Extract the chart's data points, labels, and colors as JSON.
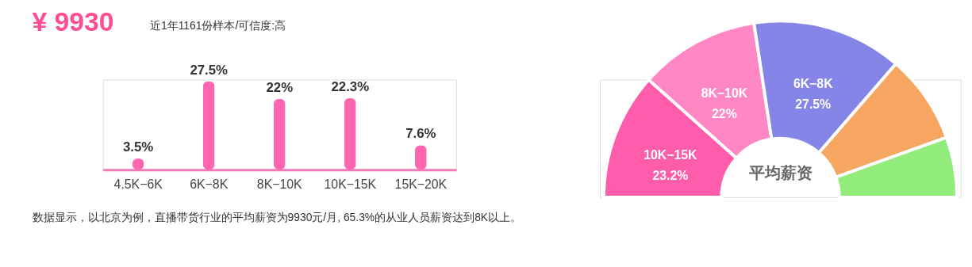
{
  "chart_data": [
    {
      "type": "bar",
      "title": "¥ 9930",
      "subtitle": "近1年1161份样本/可信度:高",
      "categories": [
        "4.5K−6K",
        "6K−8K",
        "8K−10K",
        "10K−15K",
        "15K−20K"
      ],
      "values": [
        3.5,
        27.5,
        22,
        22.3,
        7.6
      ],
      "color": "#ff66b0",
      "value_labels": [
        "3.5%",
        "27.5%",
        "22%",
        "22.3%",
        "7.6%"
      ],
      "annotations": [
        "数据显示，以北京为例，直播带货行业的平均薪资为9930元/月, 65.3%的从业人员薪资达到8K以上。"
      ]
    },
    {
      "type": "donut",
      "categories": [
        "10K−15K",
        "8K−10K",
        "6K−8K",
        null,
        null
      ],
      "values": [
        23.2,
        22,
        27.5,
        16.3,
        11
      ],
      "colors": [
        "#ff5cab",
        "#ff88c4",
        "#8585e8",
        "#f7a661",
        "#92ec7c"
      ],
      "value_labels": [
        "23.2%",
        "22%",
        "27.5%",
        null,
        null
      ],
      "annotations": [
        "平均薪资"
      ]
    }
  ]
}
